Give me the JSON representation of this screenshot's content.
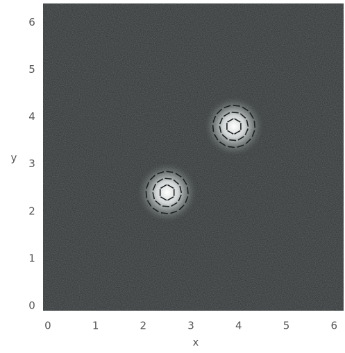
{
  "chart_data": {
    "type": "vortex",
    "x_label": "x",
    "y_label": "y",
    "x": [
      2.5,
      3.9
    ],
    "values": [
      2.4,
      3.8
    ],
    "color": "#ffffff",
    "background": "#2b2f30",
    "xlim": [
      -0.1,
      6.2
    ],
    "ylim": [
      -0.1,
      6.4
    ],
    "xticks": [
      0,
      1,
      2,
      3,
      4,
      5,
      6
    ],
    "yticks": [
      0,
      1,
      2,
      3,
      4,
      5,
      6
    ]
  }
}
